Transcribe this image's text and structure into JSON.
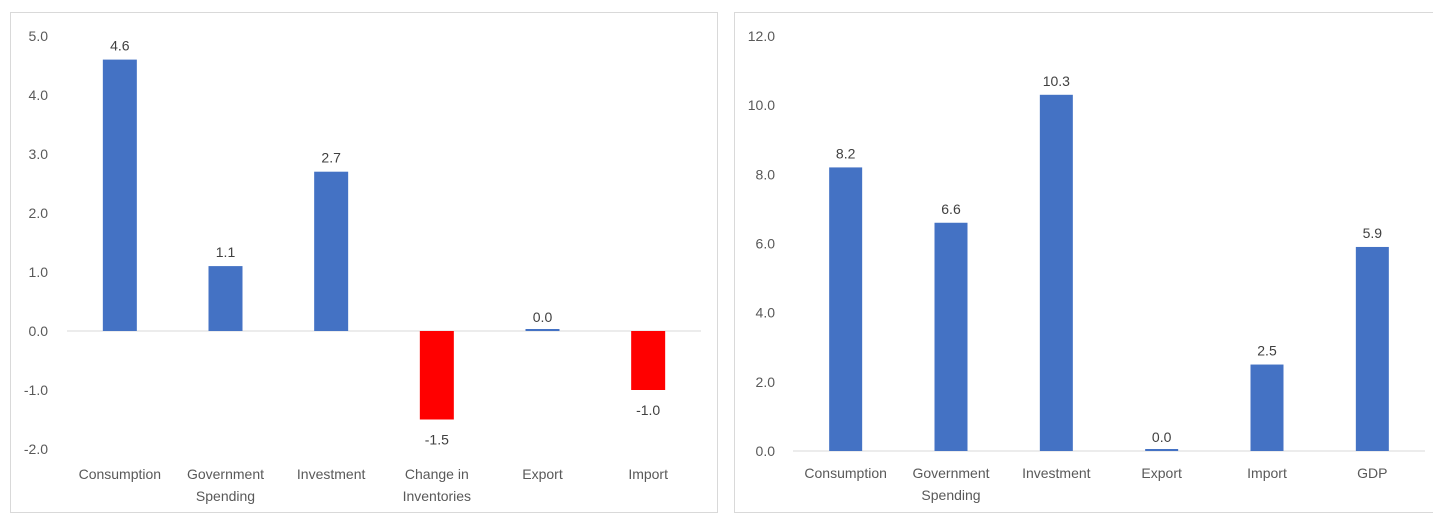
{
  "chart_data": [
    {
      "type": "bar",
      "categories": [
        [
          "Consumption"
        ],
        [
          "Government",
          "Spending"
        ],
        [
          "Investment"
        ],
        [
          "Change in",
          "Inventories"
        ],
        [
          "Export"
        ],
        [
          "Import"
        ]
      ],
      "values": [
        4.6,
        1.1,
        2.7,
        -1.5,
        0.0,
        -1.0
      ],
      "value_labels": [
        "4.6",
        "1.1",
        "2.7",
        "-1.5",
        "0.0",
        "-1.0"
      ],
      "yticks": [
        "5.0",
        "4.0",
        "3.0",
        "2.0",
        "1.0",
        "0.0",
        "-1.0",
        "-2.0"
      ],
      "ylim": [
        -2,
        5
      ],
      "colors": {
        "positive": "#4472c4",
        "negative": "#ff0000"
      },
      "grid": false,
      "legend": "none"
    },
    {
      "type": "bar",
      "categories": [
        [
          "Consumption"
        ],
        [
          "Government",
          "Spending"
        ],
        [
          "Investment"
        ],
        [
          "Export"
        ],
        [
          "Import"
        ],
        [
          "GDP"
        ]
      ],
      "values": [
        8.2,
        6.6,
        10.3,
        0.0,
        2.5,
        5.9
      ],
      "value_labels": [
        "8.2",
        "6.6",
        "10.3",
        "0.0",
        "2.5",
        "5.9"
      ],
      "yticks": [
        "12.0",
        "10.0",
        "8.0",
        "6.0",
        "4.0",
        "2.0",
        "0.0"
      ],
      "ylim": [
        0,
        12
      ],
      "colors": {
        "positive": "#4472c4",
        "negative": "#ff0000"
      },
      "grid": false,
      "legend": "none"
    }
  ]
}
